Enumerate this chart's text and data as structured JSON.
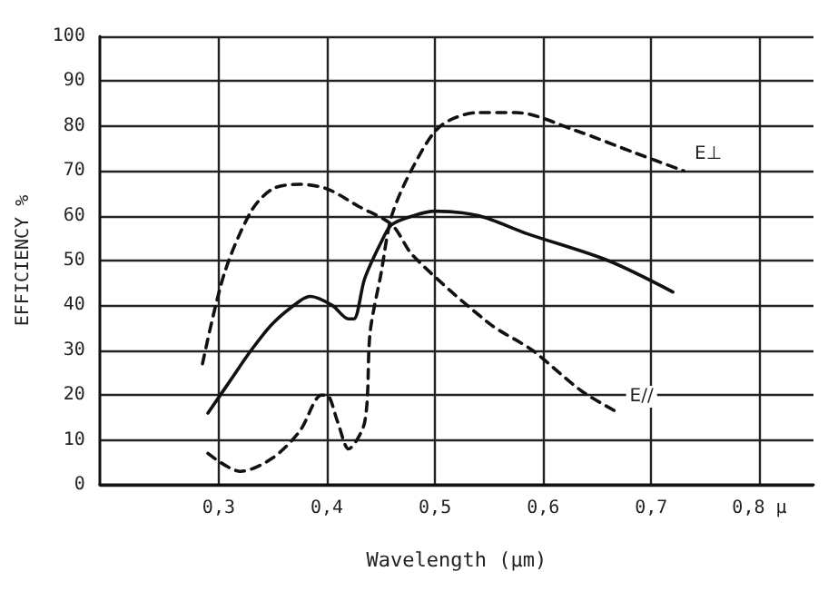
{
  "chart_data": {
    "type": "line",
    "xlabel": "Wavelength (µm)",
    "ylabel": "EFFICIENCY %",
    "xlim": [
      0.19,
      0.85
    ],
    "ylim": [
      0,
      100
    ],
    "xticks": [
      {
        "value": 0.3,
        "label": "0,3"
      },
      {
        "value": 0.4,
        "label": "0,4"
      },
      {
        "value": 0.5,
        "label": "0,5"
      },
      {
        "value": 0.6,
        "label": "0,6"
      },
      {
        "value": 0.7,
        "label": "0,7"
      },
      {
        "value": 0.8,
        "label": "0,8 µ"
      }
    ],
    "yticks": [
      0,
      10,
      20,
      30,
      40,
      50,
      60,
      70,
      80,
      90,
      100
    ],
    "grid": true,
    "marker": "none",
    "series": [
      {
        "color": "#111111",
        "line_style": "solid",
        "x": [
          0.29,
          0.31,
          0.33,
          0.35,
          0.375,
          0.385,
          0.405,
          0.42,
          0.425,
          0.435,
          0.45,
          0.46,
          0.48,
          0.5,
          0.54,
          0.585,
          0.66,
          0.72
        ],
        "values": [
          16,
          23,
          30,
          36,
          41,
          42,
          40,
          37,
          37,
          46,
          54,
          58,
          60,
          61,
          60,
          56,
          50,
          43
        ]
      },
      {
        "name": "E⊥",
        "color": "#111111",
        "line_style": "dashed",
        "x": [
          0.29,
          0.32,
          0.35,
          0.375,
          0.395,
          0.4,
          0.41,
          0.42,
          0.435,
          0.44,
          0.45,
          0.46,
          0.48,
          0.505,
          0.54,
          0.575,
          0.63,
          0.685,
          0.73
        ],
        "values": [
          7,
          3,
          6,
          12,
          20,
          20,
          14,
          8,
          14,
          34,
          47,
          60,
          71,
          80,
          83,
          83,
          79,
          74,
          70
        ]
      },
      {
        "name": "E//",
        "color": "#111111",
        "line_style": "dashed",
        "x": [
          0.285,
          0.305,
          0.33,
          0.35,
          0.375,
          0.4,
          0.43,
          0.46,
          0.48,
          0.55,
          0.59,
          0.635,
          0.67
        ],
        "values": [
          27,
          47,
          61,
          66,
          67,
          66,
          62,
          58,
          51,
          36,
          30,
          21,
          16
        ]
      }
    ]
  }
}
